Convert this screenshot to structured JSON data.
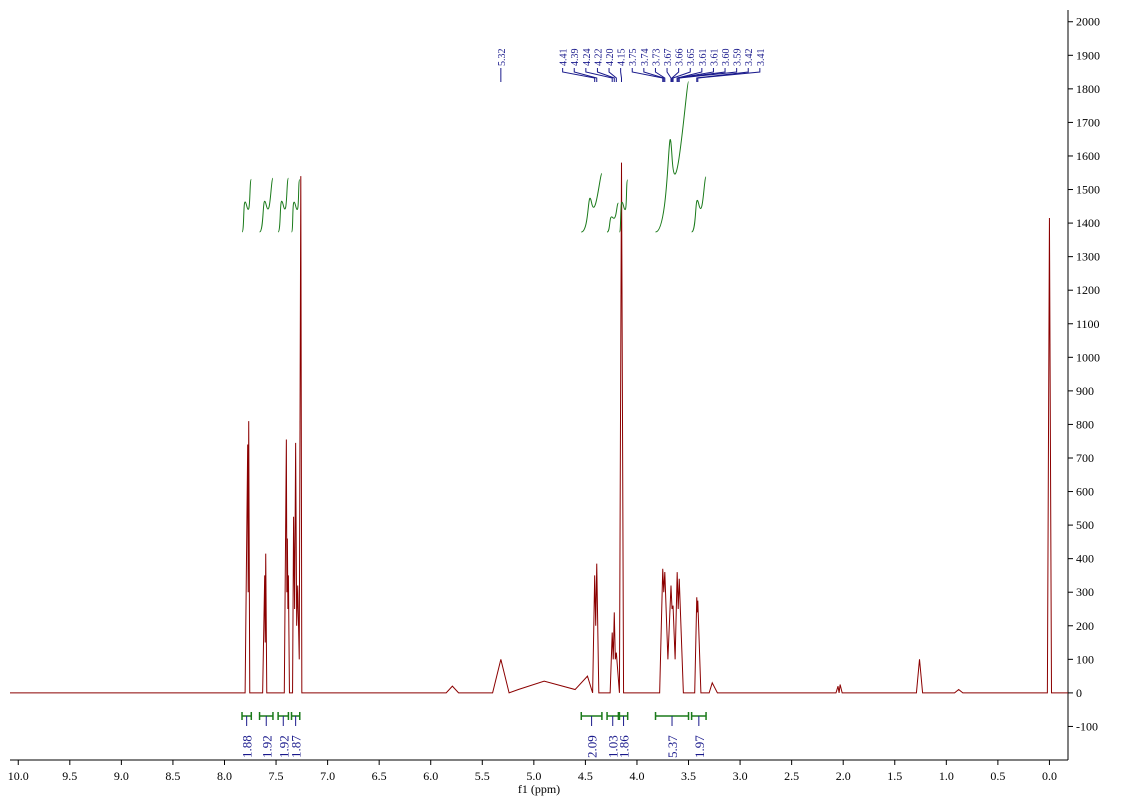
{
  "chart_data": {
    "type": "line",
    "xlabel": "f1 (ppm)",
    "color": "#8b0000",
    "xlim": [
      10.08,
      -0.18
    ],
    "ylim": [
      -200,
      2035
    ],
    "xticks": [
      {
        "value": 10,
        "label": "10.0"
      },
      9.5,
      {
        "value": 9,
        "label": "9.0"
      },
      8.5,
      {
        "value": 8,
        "label": "8.0"
      },
      7.5,
      {
        "value": 7,
        "label": "7.0"
      },
      6.5,
      {
        "value": 6,
        "label": "6.0"
      },
      5.5,
      {
        "value": 5,
        "label": "5.0"
      },
      4.5,
      {
        "value": 4,
        "label": "4.0"
      },
      3.5,
      {
        "value": 3,
        "label": "3.0"
      },
      2.5,
      {
        "value": 2,
        "label": "2.0"
      },
      1.5,
      {
        "value": 1,
        "label": "1.0"
      },
      0.5,
      {
        "value": 0,
        "label": "0.0"
      }
    ],
    "yticks": [
      -100,
      0,
      100,
      200,
      300,
      400,
      500,
      600,
      700,
      800,
      900,
      1000,
      1100,
      1200,
      1300,
      1400,
      1500,
      1600,
      1700,
      1800,
      1900,
      2000
    ],
    "x": [
      10.08,
      7.8,
      7.775,
      7.77,
      7.765,
      7.755,
      7.63,
      7.61,
      7.605,
      7.6,
      7.59,
      7.42,
      7.4,
      7.395,
      7.39,
      7.385,
      7.38,
      7.37,
      7.34,
      7.33,
      7.32,
      7.31,
      7.3,
      7.29,
      7.275,
      7.26,
      7.25,
      5.85,
      5.79,
      5.73,
      5.4,
      5.32,
      5.24,
      5.15,
      4.9,
      4.6,
      4.48,
      4.43,
      4.41,
      4.4,
      4.39,
      4.37,
      4.26,
      4.24,
      4.23,
      4.22,
      4.21,
      4.2,
      4.17,
      4.15,
      4.13,
      3.78,
      3.75,
      3.74,
      3.73,
      3.7,
      3.67,
      3.66,
      3.65,
      3.63,
      3.61,
      3.6,
      3.59,
      3.55,
      3.44,
      3.42,
      3.415,
      3.41,
      3.38,
      3.3,
      3.27,
      3.22,
      2.07,
      2.05,
      2.04,
      2.03,
      2.01,
      1.29,
      1.26,
      1.23,
      0.92,
      0.88,
      0.84,
      0.02,
      0.0,
      -0.02,
      -0.18
    ],
    "values": [
      0,
      0,
      740,
      300,
      810,
      0,
      0,
      350,
      150,
      415,
      0,
      0,
      755,
      300,
      460,
      250,
      350,
      0,
      0,
      525,
      250,
      745,
      200,
      320,
      100,
      1540,
      0,
      0,
      20,
      0,
      0,
      100,
      0,
      10,
      35,
      10,
      50,
      0,
      350,
      200,
      385,
      0,
      0,
      180,
      100,
      240,
      100,
      120,
      0,
      1580,
      0,
      0,
      370,
      300,
      360,
      100,
      320,
      250,
      260,
      100,
      360,
      250,
      340,
      0,
      0,
      285,
      240,
      275,
      0,
      0,
      30,
      0,
      0,
      20,
      0,
      25,
      0,
      0,
      100,
      0,
      0,
      10,
      0,
      0,
      1415,
      0,
      0
    ],
    "peak_groups": [
      [
        5.32
      ],
      [
        4.41,
        4.39,
        4.24,
        4.22,
        {
          "value": 4.2,
          "label": "4.20"
        },
        4.15,
        3.75,
        3.74,
        3.73,
        3.67,
        3.66,
        3.65,
        3.61,
        3.61,
        {
          "value": 3.6,
          "label": "3.60"
        },
        3.59,
        3.42,
        3.41
      ]
    ],
    "integrals": [
      {
        "from": 7.83,
        "to": 7.74,
        "value": 1.88
      },
      {
        "from": 7.66,
        "to": 7.53,
        "value": 1.92
      },
      {
        "from": 7.48,
        "to": 7.38,
        "value": 1.92
      },
      {
        "from": 7.35,
        "to": 7.27,
        "value": 1.87
      },
      {
        "from": 4.54,
        "to": 4.34,
        "value": 2.09
      },
      {
        "from": 4.29,
        "to": 4.18,
        "value": 1.03
      },
      {
        "from": 4.17,
        "to": 4.09,
        "value": 1.86
      },
      {
        "from": 3.82,
        "to": 3.5,
        "value": 5.37
      },
      {
        "from": 3.47,
        "to": 3.33,
        "value": 1.97
      }
    ]
  }
}
